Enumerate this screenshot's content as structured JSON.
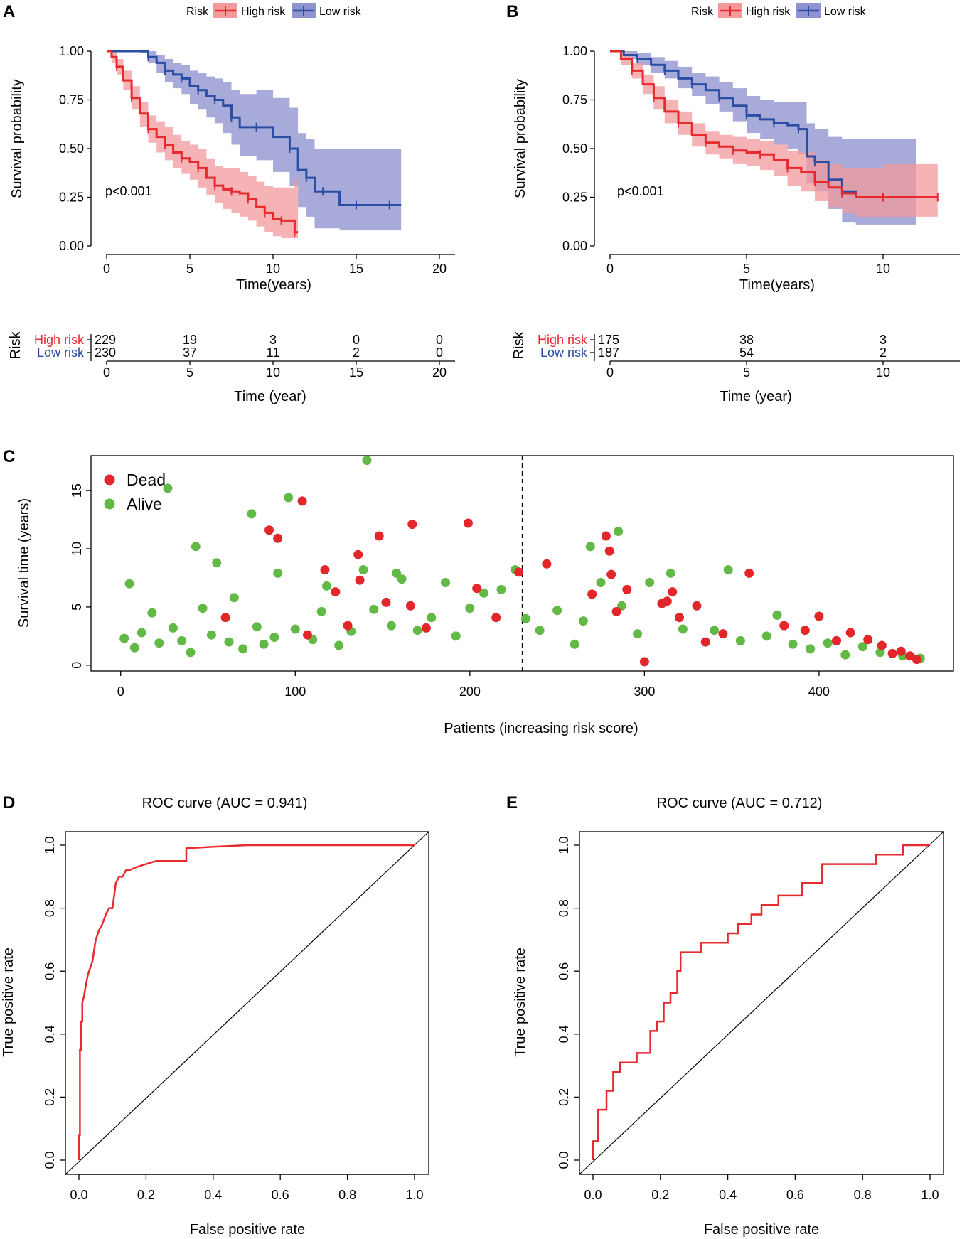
{
  "panels": {
    "A": "A",
    "B": "B",
    "C": "C",
    "D": "D",
    "E": "E"
  },
  "colors": {
    "high_risk": "#e8292e",
    "high_risk_band": "#f29a9c",
    "low_risk": "#2a4ea3",
    "low_risk_band": "#8f93cf",
    "dead": "#e3262a",
    "alive": "#63b946",
    "roc": "#e8292e"
  },
  "chart_data": [
    {
      "id": "A",
      "type": "line",
      "kind": "kaplan-meier",
      "legend_title": "Risk",
      "xlabel": "Time(years)",
      "ylabel": "Survival probability",
      "xlim": [
        0,
        20
      ],
      "ylim": [
        0,
        1
      ],
      "xticks": [
        "0",
        "5",
        "10",
        "15",
        "20"
      ],
      "yticks": [
        "0.00",
        "0.25",
        "0.50",
        "0.75",
        "1.00"
      ],
      "annotation": "p<0.001",
      "series": [
        {
          "name": "High risk",
          "x": [
            0,
            0.3,
            0.6,
            1.0,
            1.5,
            2.0,
            2.5,
            3.0,
            3.5,
            4.0,
            4.5,
            5.0,
            5.5,
            6.0,
            6.5,
            7.0,
            7.5,
            8.0,
            8.5,
            9.0,
            9.5,
            10.0,
            10.5,
            11.0,
            11.3,
            11.5
          ],
          "y": [
            1.0,
            0.97,
            0.92,
            0.85,
            0.76,
            0.68,
            0.6,
            0.56,
            0.52,
            0.48,
            0.45,
            0.43,
            0.4,
            0.35,
            0.31,
            0.29,
            0.28,
            0.27,
            0.24,
            0.2,
            0.17,
            0.14,
            0.13,
            0.13,
            0.07,
            0.07
          ],
          "lower": [
            1.0,
            0.94,
            0.88,
            0.8,
            0.7,
            0.61,
            0.53,
            0.48,
            0.44,
            0.4,
            0.37,
            0.34,
            0.3,
            0.26,
            0.22,
            0.19,
            0.17,
            0.15,
            0.13,
            0.1,
            0.07,
            0.05,
            0.04,
            0.04,
            0.04,
            0.04
          ],
          "upper": [
            1.0,
            1.0,
            0.96,
            0.9,
            0.82,
            0.74,
            0.67,
            0.64,
            0.61,
            0.57,
            0.54,
            0.52,
            0.5,
            0.45,
            0.41,
            0.4,
            0.4,
            0.38,
            0.36,
            0.33,
            0.31,
            0.3,
            0.3,
            0.3,
            0.34,
            0.34
          ]
        },
        {
          "name": "Low risk",
          "x": [
            0,
            2.0,
            2.5,
            3.0,
            3.5,
            4.0,
            4.5,
            5.0,
            5.5,
            6.0,
            6.5,
            7.0,
            7.5,
            8.0,
            9.0,
            10.0,
            11.0,
            11.5,
            12.0,
            12.5,
            13.0,
            14.0,
            15.0,
            16.0,
            17.0,
            17.7
          ],
          "y": [
            1.0,
            1.0,
            0.97,
            0.94,
            0.9,
            0.88,
            0.86,
            0.82,
            0.8,
            0.77,
            0.75,
            0.72,
            0.66,
            0.61,
            0.61,
            0.56,
            0.5,
            0.39,
            0.35,
            0.28,
            0.28,
            0.21,
            0.21,
            0.21,
            0.21,
            0.21
          ],
          "lower": [
            1.0,
            0.99,
            0.94,
            0.89,
            0.84,
            0.81,
            0.78,
            0.73,
            0.7,
            0.66,
            0.63,
            0.58,
            0.52,
            0.46,
            0.44,
            0.38,
            0.31,
            0.2,
            0.15,
            0.09,
            0.09,
            0.08,
            0.08,
            0.08,
            0.08,
            0.08
          ],
          "upper": [
            1.0,
            1.0,
            1.0,
            0.98,
            0.96,
            0.94,
            0.93,
            0.9,
            0.89,
            0.87,
            0.86,
            0.84,
            0.8,
            0.78,
            0.8,
            0.76,
            0.71,
            0.58,
            0.55,
            0.5,
            0.5,
            0.5,
            0.5,
            0.5,
            0.5,
            0.5
          ]
        }
      ],
      "risk_table": {
        "ylabel": "Risk",
        "xlabel": "Time (year)",
        "times": [
          0,
          5,
          10,
          15,
          20
        ],
        "rows": [
          {
            "name": "High risk",
            "counts": [
              "229",
              "19",
              "3",
              "0",
              "0"
            ]
          },
          {
            "name": "Low risk",
            "counts": [
              "230",
              "37",
              "11",
              "2",
              "0"
            ]
          }
        ]
      }
    },
    {
      "id": "B",
      "type": "line",
      "kind": "kaplan-meier",
      "legend_title": "Risk",
      "xlabel": "Time(years)",
      "ylabel": "Survival probability",
      "xlim": [
        0,
        12.5
      ],
      "ylim": [
        0,
        1
      ],
      "xticks": [
        "0",
        "5",
        "10"
      ],
      "yticks": [
        "0.00",
        "0.25",
        "0.50",
        "0.75",
        "1.00"
      ],
      "annotation": "p<0.001",
      "series": [
        {
          "name": "High risk",
          "x": [
            0,
            0.4,
            0.8,
            1.2,
            1.6,
            2.0,
            2.5,
            3.0,
            3.5,
            4.0,
            4.5,
            5.0,
            5.5,
            6.0,
            6.5,
            7.0,
            7.5,
            8.0,
            8.5,
            9.0,
            10.0,
            11.0,
            12.0
          ],
          "y": [
            1.0,
            0.96,
            0.9,
            0.83,
            0.76,
            0.69,
            0.63,
            0.57,
            0.53,
            0.51,
            0.49,
            0.48,
            0.47,
            0.44,
            0.4,
            0.38,
            0.33,
            0.3,
            0.27,
            0.25,
            0.25,
            0.25,
            0.25
          ],
          "lower": [
            1.0,
            0.93,
            0.86,
            0.78,
            0.7,
            0.63,
            0.57,
            0.51,
            0.47,
            0.45,
            0.42,
            0.41,
            0.39,
            0.36,
            0.31,
            0.28,
            0.23,
            0.2,
            0.17,
            0.15,
            0.15,
            0.15,
            0.15
          ],
          "upper": [
            1.0,
            0.99,
            0.94,
            0.88,
            0.82,
            0.75,
            0.69,
            0.63,
            0.59,
            0.57,
            0.56,
            0.55,
            0.54,
            0.52,
            0.49,
            0.48,
            0.44,
            0.42,
            0.4,
            0.4,
            0.42,
            0.42,
            0.42
          ]
        },
        {
          "name": "Low risk",
          "x": [
            0,
            0.5,
            1.0,
            1.5,
            2.0,
            2.5,
            3.0,
            3.5,
            4.0,
            4.5,
            5.0,
            5.5,
            6.0,
            6.5,
            6.9,
            7.2,
            7.5,
            8.0,
            8.5,
            9.0,
            10.0,
            11.2
          ],
          "y": [
            1.0,
            0.98,
            0.96,
            0.93,
            0.9,
            0.86,
            0.83,
            0.8,
            0.76,
            0.72,
            0.67,
            0.65,
            0.63,
            0.62,
            0.6,
            0.46,
            0.43,
            0.34,
            0.28,
            0.25,
            0.25,
            0.25
          ],
          "lower": [
            1.0,
            0.96,
            0.93,
            0.89,
            0.86,
            0.81,
            0.77,
            0.73,
            0.69,
            0.64,
            0.58,
            0.55,
            0.52,
            0.5,
            0.47,
            0.32,
            0.28,
            0.19,
            0.12,
            0.11,
            0.11,
            0.11
          ],
          "upper": [
            1.0,
            1.0,
            0.99,
            0.97,
            0.95,
            0.92,
            0.89,
            0.87,
            0.84,
            0.81,
            0.77,
            0.75,
            0.74,
            0.74,
            0.74,
            0.63,
            0.6,
            0.56,
            0.55,
            0.55,
            0.55,
            0.55
          ]
        }
      ],
      "risk_table": {
        "ylabel": "Risk",
        "xlabel": "Time (year)",
        "times": [
          0,
          5,
          10
        ],
        "rows": [
          {
            "name": "High risk",
            "counts": [
              "175",
              "38",
              "3"
            ]
          },
          {
            "name": "Low risk",
            "counts": [
              "187",
              "54",
              "2"
            ]
          }
        ]
      }
    },
    {
      "id": "C",
      "type": "scatter",
      "xlabel": "Patients (increasing risk score)",
      "ylabel": "Survival time (years)",
      "xlim": [
        -17,
        477
      ],
      "ylim": [
        -0.5,
        18
      ],
      "xticks": [
        "0",
        "100",
        "200",
        "300",
        "400"
      ],
      "yticks": [
        "0",
        "5",
        "10",
        "15"
      ],
      "cutoff": 230,
      "legend": [
        "Dead",
        "Alive"
      ],
      "dead": [
        [
          60,
          4.1
        ],
        [
          85,
          11.6
        ],
        [
          90,
          10.9
        ],
        [
          104,
          14.1
        ],
        [
          107,
          2.6
        ],
        [
          117,
          8.2
        ],
        [
          123,
          6.3
        ],
        [
          130,
          3.4
        ],
        [
          136,
          9.5
        ],
        [
          137,
          7.3
        ],
        [
          148,
          11.1
        ],
        [
          152,
          5.4
        ],
        [
          166,
          5.1
        ],
        [
          167,
          12.1
        ],
        [
          175,
          3.2
        ],
        [
          199,
          12.2
        ],
        [
          204,
          6.6
        ],
        [
          215,
          4.1
        ],
        [
          228,
          8.0
        ],
        [
          244,
          8.7
        ],
        [
          270,
          6.1
        ],
        [
          278,
          11.1
        ],
        [
          280,
          9.8
        ],
        [
          281,
          7.8
        ],
        [
          284,
          4.6
        ],
        [
          290,
          6.5
        ],
        [
          300,
          0.3
        ],
        [
          310,
          5.3
        ],
        [
          313,
          5.5
        ],
        [
          316,
          6.3
        ],
        [
          320,
          4.1
        ],
        [
          330,
          5.1
        ],
        [
          335,
          2.0
        ],
        [
          345,
          2.7
        ],
        [
          360,
          7.9
        ],
        [
          380,
          3.4
        ],
        [
          392,
          3.0
        ],
        [
          400,
          4.2
        ],
        [
          410,
          2.1
        ],
        [
          418,
          2.8
        ],
        [
          428,
          2.2
        ],
        [
          436,
          1.7
        ],
        [
          442,
          1.0
        ],
        [
          447,
          1.2
        ],
        [
          452,
          0.8
        ],
        [
          456,
          0.5
        ]
      ],
      "alive": [
        [
          2,
          2.3
        ],
        [
          5,
          7.0
        ],
        [
          8,
          1.5
        ],
        [
          12,
          2.8
        ],
        [
          18,
          4.5
        ],
        [
          22,
          1.9
        ],
        [
          27,
          15.2
        ],
        [
          30,
          3.2
        ],
        [
          35,
          2.1
        ],
        [
          40,
          1.1
        ],
        [
          43,
          10.2
        ],
        [
          47,
          4.9
        ],
        [
          52,
          2.6
        ],
        [
          55,
          8.8
        ],
        [
          62,
          2.0
        ],
        [
          65,
          5.8
        ],
        [
          70,
          1.4
        ],
        [
          75,
          13.0
        ],
        [
          78,
          3.3
        ],
        [
          82,
          1.8
        ],
        [
          88,
          2.4
        ],
        [
          90,
          7.9
        ],
        [
          96,
          14.4
        ],
        [
          100,
          3.1
        ],
        [
          110,
          2.2
        ],
        [
          115,
          4.6
        ],
        [
          118,
          6.8
        ],
        [
          125,
          1.7
        ],
        [
          132,
          2.9
        ],
        [
          139,
          8.2
        ],
        [
          141,
          17.6
        ],
        [
          145,
          4.8
        ],
        [
          155,
          3.4
        ],
        [
          158,
          7.9
        ],
        [
          161,
          7.4
        ],
        [
          170,
          3.0
        ],
        [
          178,
          4.1
        ],
        [
          186,
          7.1
        ],
        [
          192,
          2.5
        ],
        [
          200,
          4.9
        ],
        [
          208,
          6.2
        ],
        [
          218,
          6.5
        ],
        [
          226,
          8.2
        ],
        [
          232,
          4.0
        ],
        [
          240,
          3.0
        ],
        [
          250,
          4.7
        ],
        [
          260,
          1.8
        ],
        [
          265,
          3.8
        ],
        [
          269,
          10.2
        ],
        [
          275,
          7.1
        ],
        [
          285,
          11.5
        ],
        [
          287,
          5.1
        ],
        [
          296,
          2.7
        ],
        [
          303,
          7.1
        ],
        [
          315,
          7.9
        ],
        [
          322,
          3.1
        ],
        [
          340,
          3.0
        ],
        [
          348,
          8.2
        ],
        [
          355,
          2.1
        ],
        [
          370,
          2.5
        ],
        [
          376,
          4.3
        ],
        [
          385,
          1.8
        ],
        [
          395,
          1.4
        ],
        [
          405,
          1.9
        ],
        [
          415,
          0.9
        ],
        [
          425,
          1.6
        ],
        [
          435,
          1.1
        ],
        [
          448,
          0.8
        ],
        [
          458,
          0.6
        ]
      ]
    },
    {
      "id": "D",
      "type": "line",
      "kind": "roc",
      "title": "ROC curve (AUC = 0.941)",
      "xlabel": "False positive rate",
      "ylabel": "True positive rate",
      "xlim": [
        0,
        1
      ],
      "ylim": [
        0,
        1
      ],
      "xticks": [
        "0.0",
        "0.2",
        "0.4",
        "0.6",
        "0.8",
        "1.0"
      ],
      "yticks": [
        "0.0",
        "0.2",
        "0.4",
        "0.6",
        "0.8",
        "1.0"
      ],
      "x": [
        0,
        0,
        0.003,
        0.003,
        0.006,
        0.006,
        0.01,
        0.01,
        0.015,
        0.02,
        0.025,
        0.03,
        0.04,
        0.05,
        0.06,
        0.07,
        0.08,
        0.09,
        0.1,
        0.11,
        0.12,
        0.13,
        0.14,
        0.15,
        0.17,
        0.2,
        0.23,
        0.25,
        0.28,
        0.32,
        0.32,
        0.4,
        0.5,
        0.6,
        0.7,
        0.8,
        0.9,
        1.0
      ],
      "y": [
        0,
        0.08,
        0.08,
        0.35,
        0.35,
        0.44,
        0.44,
        0.5,
        0.52,
        0.55,
        0.58,
        0.6,
        0.63,
        0.7,
        0.73,
        0.75,
        0.78,
        0.8,
        0.8,
        0.88,
        0.9,
        0.9,
        0.92,
        0.92,
        0.93,
        0.94,
        0.95,
        0.95,
        0.95,
        0.95,
        0.99,
        0.995,
        1.0,
        1.0,
        1.0,
        1.0,
        1.0,
        1.0
      ]
    },
    {
      "id": "E",
      "type": "line",
      "kind": "roc",
      "title": "ROC curve (AUC = 0.712)",
      "xlabel": "False positive rate",
      "ylabel": "True positive rate",
      "xlim": [
        0,
        1
      ],
      "ylim": [
        0,
        1
      ],
      "xticks": [
        "0.0",
        "0.2",
        "0.4",
        "0.6",
        "0.8",
        "1.0"
      ],
      "yticks": [
        "0.0",
        "0.2",
        "0.4",
        "0.6",
        "0.8",
        "1.0"
      ],
      "x": [
        0,
        0,
        0.015,
        0.015,
        0.04,
        0.04,
        0.06,
        0.06,
        0.08,
        0.08,
        0.13,
        0.13,
        0.17,
        0.17,
        0.19,
        0.19,
        0.21,
        0.21,
        0.23,
        0.23,
        0.25,
        0.25,
        0.26,
        0.26,
        0.27,
        0.27,
        0.32,
        0.32,
        0.4,
        0.4,
        0.43,
        0.43,
        0.47,
        0.47,
        0.5,
        0.5,
        0.55,
        0.55,
        0.62,
        0.62,
        0.68,
        0.68,
        0.84,
        0.84,
        0.92,
        0.92,
        1.0
      ],
      "y": [
        0,
        0.06,
        0.06,
        0.16,
        0.16,
        0.22,
        0.22,
        0.28,
        0.28,
        0.31,
        0.31,
        0.34,
        0.34,
        0.41,
        0.41,
        0.44,
        0.44,
        0.5,
        0.5,
        0.53,
        0.53,
        0.6,
        0.6,
        0.66,
        0.66,
        0.66,
        0.66,
        0.69,
        0.69,
        0.72,
        0.72,
        0.75,
        0.75,
        0.78,
        0.78,
        0.81,
        0.81,
        0.84,
        0.84,
        0.88,
        0.88,
        0.94,
        0.94,
        0.97,
        0.97,
        1.0,
        1.0
      ]
    }
  ]
}
